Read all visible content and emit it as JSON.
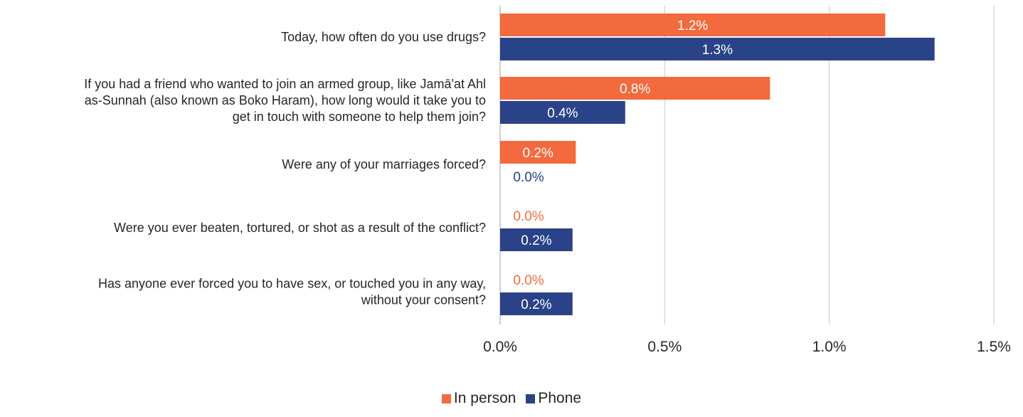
{
  "chart_data": {
    "type": "bar",
    "orientation": "horizontal",
    "title": "",
    "xlabel": "",
    "ylabel": "",
    "categories": [
      "Today, how often do you use drugs?",
      "If you had a friend who wanted to join an armed group, like Jamā'at Ahl as-Sunnah (also known as Boko Haram), how long would it take you to get in touch with someone to help them join?",
      "Were any of your marriages forced?",
      "Were you ever beaten, tortured, or shot as a result of the conflict?",
      "Has anyone ever forced you to have sex, or touched you in any way, without your consent?"
    ],
    "category_lines": [
      [
        "Today, how often do you use drugs?"
      ],
      [
        "If you had a friend who wanted to join an armed group, like Jamā'at Ahl",
        "as-Sunnah (also known as Boko Haram), how long would it take you to",
        "get in touch with someone to help them join?"
      ],
      [
        "Were any of your marriages forced?"
      ],
      [
        "Were you ever beaten, tortured, or shot as a result of the conflict?"
      ],
      [
        "Has anyone ever forced you to have sex, or touched you in any way,",
        "without your consent?"
      ]
    ],
    "series": [
      {
        "name": "In person",
        "color": "#f26a3d",
        "values": [
          1.17,
          0.82,
          0.23,
          0.0,
          0.0
        ],
        "labels": [
          "1.2%",
          "0.8%",
          "0.2%",
          "0.0%",
          "0.0%"
        ]
      },
      {
        "name": "Phone",
        "color": "#2a4288",
        "values": [
          1.32,
          0.38,
          0.0,
          0.22,
          0.22
        ],
        "labels": [
          "1.3%",
          "0.4%",
          "0.0%",
          "0.2%",
          "0.2%"
        ]
      }
    ],
    "xlim": [
      0,
      1.5
    ],
    "xticks": [
      0,
      0.5,
      1.0,
      1.5
    ],
    "xtick_labels": [
      "0.0%",
      "0.5%",
      "1.0%",
      "1.5%"
    ],
    "grid": "vertical",
    "legend_position": "bottom"
  }
}
